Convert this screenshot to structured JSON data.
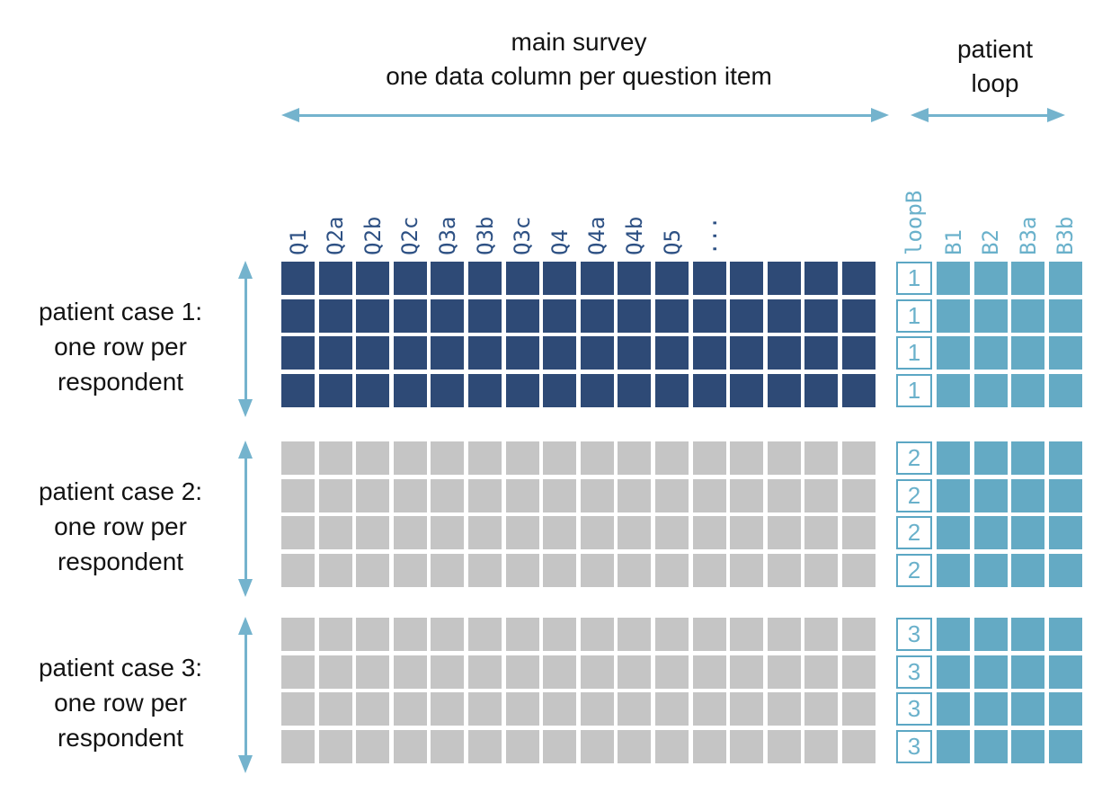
{
  "colors": {
    "dark_square": "#2e4a76",
    "gray_square": "#c5c5c5",
    "teal_square": "#64aac4",
    "teal_text": "#6ab1cb",
    "navy_text": "#2e5184",
    "arrow": "#74b3cd",
    "loop_box_border": "#5ca7c4",
    "loop_box_bg": "#ffffff"
  },
  "header": {
    "main_survey_line1": "main survey",
    "main_survey_line2": "one data column per question item",
    "patient_loop_line1": "patient",
    "patient_loop_line2": "loop"
  },
  "main_grid": {
    "column_headers": [
      "Q1",
      "Q2a",
      "Q2b",
      "Q2c",
      "Q3a",
      "Q3b",
      "Q3c",
      "Q4",
      "Q4a",
      "Q4b",
      "Q5",
      "..."
    ],
    "total_columns": 16,
    "rows_per_block": 4
  },
  "loop_grid": {
    "id_column_header": "loopB",
    "column_headers": [
      "B1",
      "B2",
      "B3a",
      "B3b"
    ]
  },
  "blocks": [
    {
      "label_lines": [
        "patient case 1:",
        "one row per",
        "respondent"
      ],
      "loop_values": [
        "1",
        "1",
        "1",
        "1"
      ],
      "style": "dark"
    },
    {
      "label_lines": [
        "patient case 2:",
        "one row per",
        "respondent"
      ],
      "loop_values": [
        "2",
        "2",
        "2",
        "2"
      ],
      "style": "gray"
    },
    {
      "label_lines": [
        "patient case 3:",
        "one row per",
        "respondent"
      ],
      "loop_values": [
        "3",
        "3",
        "3",
        "3"
      ],
      "style": "gray"
    }
  ]
}
